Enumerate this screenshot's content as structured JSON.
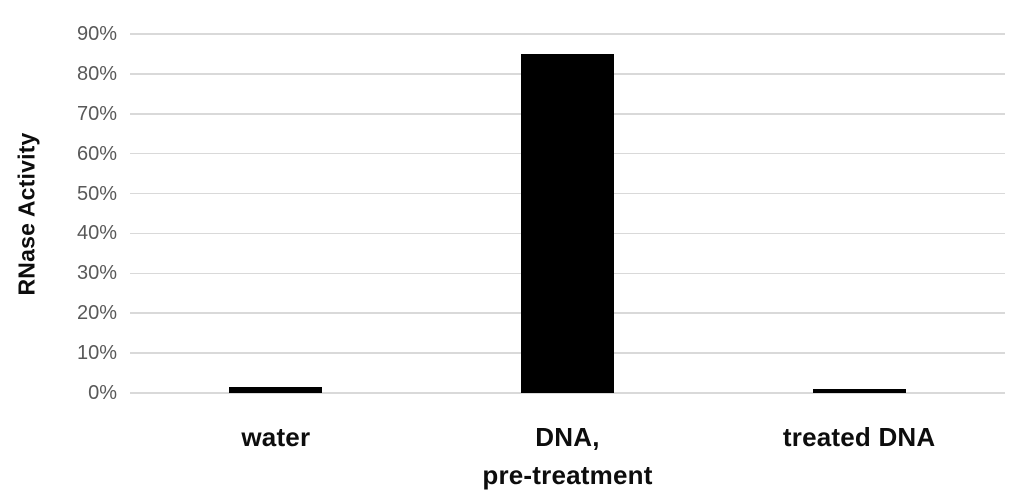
{
  "chart_data": {
    "type": "bar",
    "title": "",
    "xlabel": "",
    "ylabel": "RNase Activity",
    "categories": [
      "water",
      "DNA,\npre-treatment",
      "treated DNA"
    ],
    "values": [
      1.5,
      85,
      1
    ],
    "y_ticks": [
      0,
      10,
      20,
      30,
      40,
      50,
      60,
      70,
      80,
      90
    ],
    "y_tick_suffix": "%",
    "ylim": [
      0,
      90
    ],
    "grid": "horizontal",
    "legend": "none",
    "bar_color": "#000000",
    "gridline_color": "#d9d9d9",
    "tick_label_color": "#595959",
    "category_label_color": "#0d0d0d",
    "background_color": "#ffffff"
  }
}
